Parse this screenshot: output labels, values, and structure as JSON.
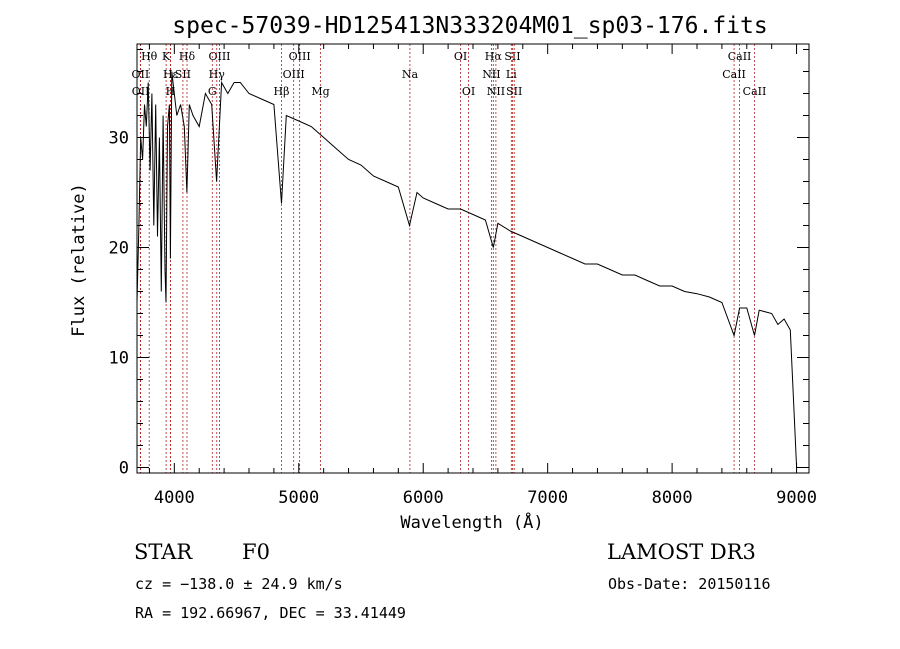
{
  "colors": {
    "line_marker": "#b22222",
    "spectrum": "#000000",
    "axes": "#000000"
  },
  "chart_data": {
    "type": "line",
    "title": "spec-57039-HD125413N333204M01_sp03-176.fits",
    "xlabel": "Wavelength (Å)",
    "ylabel": "Flux (relative)",
    "xlim": [
      3700,
      9100
    ],
    "ylim": [
      -0.5,
      38.5
    ],
    "x_ticks": [
      4000,
      5000,
      6000,
      7000,
      8000,
      9000
    ],
    "y_ticks": [
      0,
      10,
      20,
      30
    ],
    "series": [
      {
        "name": "spectrum",
        "x": [
          3700,
          3715,
          3730,
          3745,
          3760,
          3775,
          3790,
          3805,
          3820,
          3835,
          3850,
          3865,
          3880,
          3895,
          3910,
          3925,
          3933,
          3945,
          3960,
          3968,
          3980,
          4000,
          4020,
          4050,
          4080,
          4101,
          4120,
          4150,
          4200,
          4250,
          4300,
          4340,
          4380,
          4430,
          4480,
          4530,
          4600,
          4700,
          4800,
          4861,
          4900,
          5000,
          5100,
          5200,
          5300,
          5400,
          5500,
          5600,
          5700,
          5800,
          5890,
          5950,
          6000,
          6100,
          6200,
          6300,
          6400,
          6500,
          6563,
          6600,
          6700,
          6800,
          6900,
          7000,
          7100,
          7200,
          7300,
          7400,
          7500,
          7600,
          7700,
          7800,
          7900,
          8000,
          8100,
          8200,
          8300,
          8400,
          8498,
          8542,
          8600,
          8662,
          8700,
          8800,
          8850,
          8900,
          8950,
          9000
        ],
        "values": [
          15,
          22,
          30,
          28,
          33,
          31,
          35,
          27,
          34,
          22,
          33,
          21,
          30,
          16,
          32,
          18,
          15,
          31,
          33,
          19,
          36,
          34,
          32,
          33,
          31,
          25,
          33,
          32,
          31,
          34,
          33,
          26,
          35,
          34,
          35,
          35,
          34,
          33.5,
          33,
          24,
          32,
          31.5,
          31,
          30,
          29,
          28,
          27.5,
          26.5,
          26,
          25.5,
          22,
          25,
          24.5,
          24,
          23.5,
          23.5,
          23,
          22.5,
          20,
          22.2,
          21.5,
          21,
          20.5,
          20,
          19.5,
          19,
          18.5,
          18.5,
          18,
          17.5,
          17.5,
          17,
          16.5,
          16.5,
          16,
          15.8,
          15.5,
          15,
          12,
          14.5,
          14.5,
          12,
          14.3,
          14,
          13,
          13.5,
          12.5,
          0
        ]
      }
    ],
    "line_markers": [
      {
        "label": "Hθ",
        "x": 3798,
        "row": 0
      },
      {
        "label": "OII",
        "x": 3727,
        "row": 1
      },
      {
        "label": "OII",
        "x": 3729,
        "row": 2
      },
      {
        "label": "K",
        "x": 3934,
        "row": 0
      },
      {
        "label": "H",
        "x": 3969,
        "row": 2
      },
      {
        "label": "Hε",
        "x": 3970,
        "row": 1
      },
      {
        "label": "SII",
        "x": 4069,
        "row": 1
      },
      {
        "label": "Hδ",
        "x": 4102,
        "row": 0
      },
      {
        "label": "OIII",
        "x": 4363,
        "row": 0
      },
      {
        "label": "Hγ",
        "x": 4341,
        "row": 1
      },
      {
        "label": "G",
        "x": 4305,
        "row": 2
      },
      {
        "label": "Hβ",
        "x": 4861,
        "row": 2
      },
      {
        "label": "OIII",
        "x": 4959,
        "row": 1
      },
      {
        "label": "OIII",
        "x": 5007,
        "row": 0
      },
      {
        "label": "Mg",
        "x": 5175,
        "row": 2
      },
      {
        "label": "Na",
        "x": 5893,
        "row": 1
      },
      {
        "label": "OI",
        "x": 6300,
        "row": 0
      },
      {
        "label": "OI",
        "x": 6364,
        "row": 2
      },
      {
        "label": "Hα",
        "x": 6563,
        "row": 0
      },
      {
        "label": "NII",
        "x": 6548,
        "row": 1
      },
      {
        "label": "NII",
        "x": 6584,
        "row": 2
      },
      {
        "label": "SII",
        "x": 6717,
        "row": 0
      },
      {
        "label": "Li",
        "x": 6708,
        "row": 1
      },
      {
        "label": "SII",
        "x": 6731,
        "row": 2
      },
      {
        "label": "CaII",
        "x": 8542,
        "row": 0
      },
      {
        "label": "CaII",
        "x": 8498,
        "row": 1
      },
      {
        "label": "CaII",
        "x": 8662,
        "row": 2
      }
    ]
  },
  "info": {
    "object_type": "STAR",
    "subclass": "F0",
    "survey": "LAMOST DR3",
    "cz": "cz = −138.0 ± 24.9 km/s",
    "obs_date": "Obs-Date: 20150116",
    "coords": "RA = 192.66967, DEC =  33.41449"
  }
}
